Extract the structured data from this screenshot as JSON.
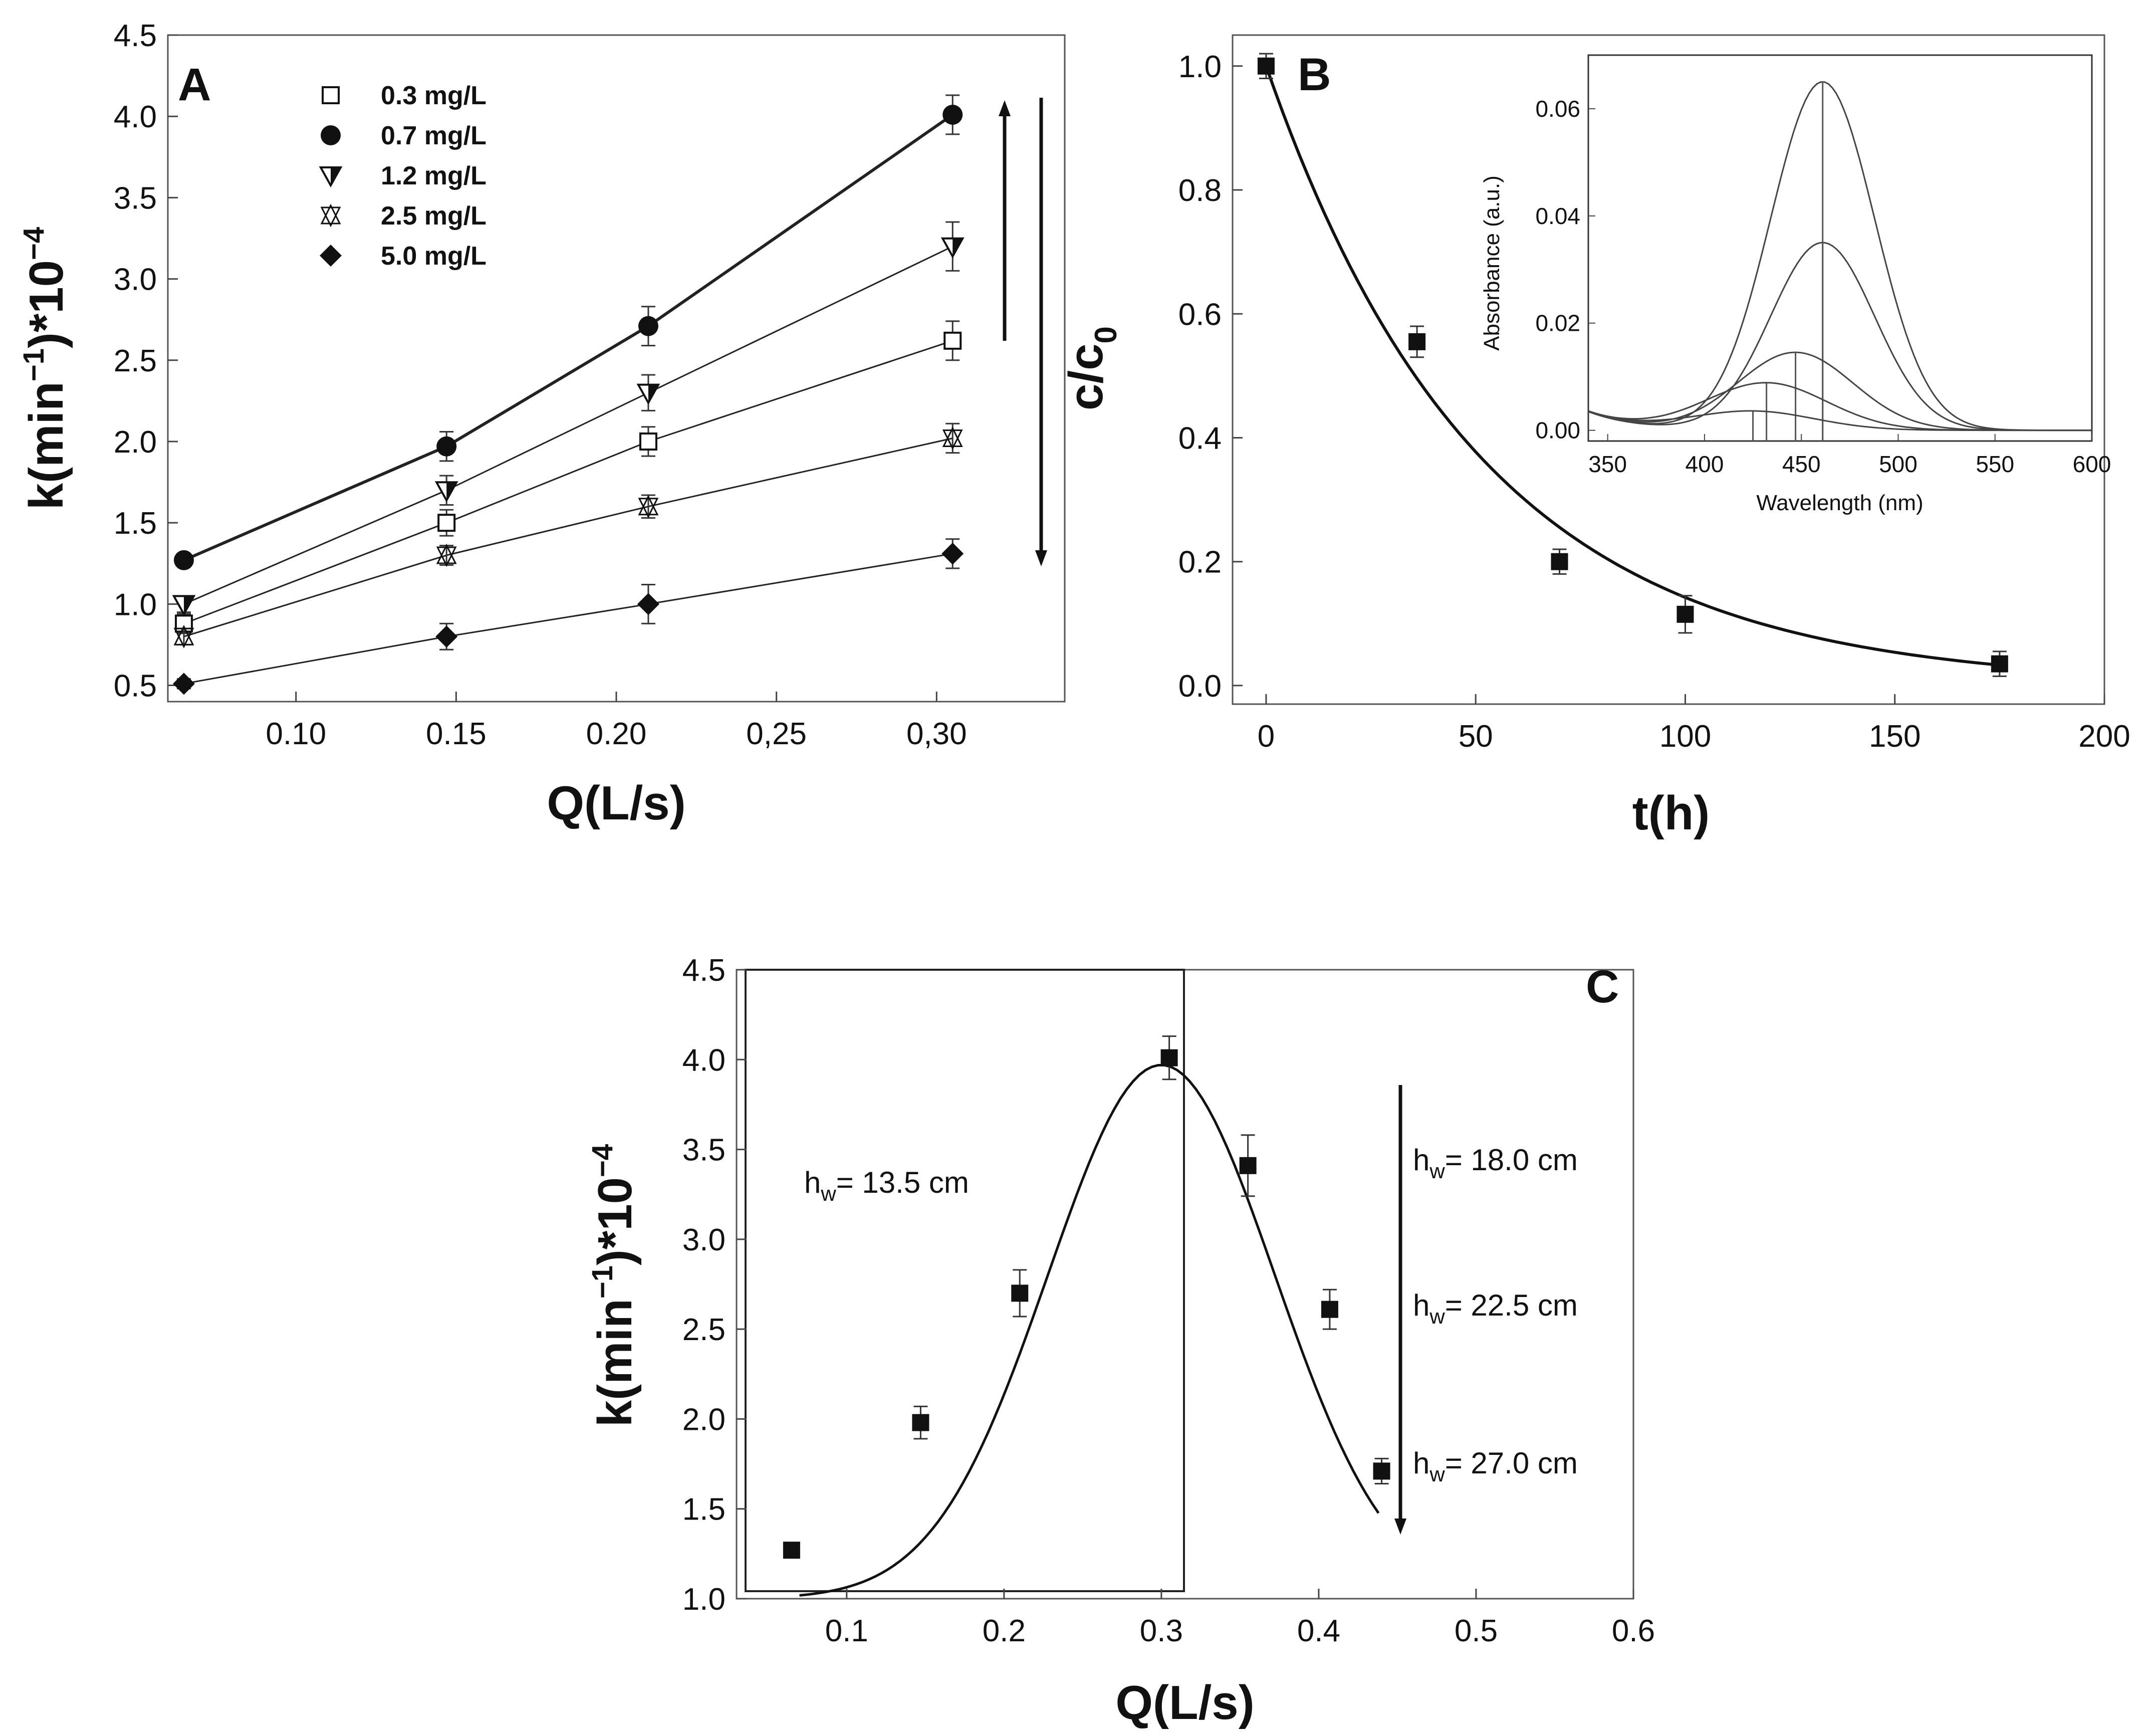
{
  "chart_data": [
    {
      "panel": "A",
      "type": "line",
      "xlabel": "Q(L/s)",
      "ylabel_main": "k(min",
      "ylabel_sup1": "−1",
      "ylabel_mid": ")*10",
      "ylabel_sup2": "−4",
      "xlim": [
        0.06,
        0.34
      ],
      "ylim": [
        0.4,
        4.5
      ],
      "xticks": [
        {
          "v": 0.1,
          "label": "0.10"
        },
        {
          "v": 0.15,
          "label": "0.15"
        },
        {
          "v": 0.2,
          "label": "0.20"
        },
        {
          "v": 0.25,
          "label": "0,25"
        },
        {
          "v": 0.3,
          "label": "0,30"
        }
      ],
      "yticks": [
        {
          "v": 0.5,
          "label": "0.5"
        },
        {
          "v": 1.0,
          "label": "1.0"
        },
        {
          "v": 1.5,
          "label": "1.5"
        },
        {
          "v": 2.0,
          "label": "2.0"
        },
        {
          "v": 2.5,
          "label": "2.5"
        },
        {
          "v": 3.0,
          "label": "3.0"
        },
        {
          "v": 3.5,
          "label": "3.5"
        },
        {
          "v": 4.0,
          "label": "4.0"
        },
        {
          "v": 4.5,
          "label": "4.5"
        }
      ],
      "x": [
        0.065,
        0.147,
        0.21,
        0.305
      ],
      "series": [
        {
          "name": "0.3 mg/L",
          "marker": "open-square",
          "values": [
            0.88,
            1.5,
            2.0,
            2.62
          ],
          "err": [
            0.06,
            0.08,
            0.09,
            0.12
          ]
        },
        {
          "name": "0.7 mg/L",
          "marker": "filled-circle",
          "values": [
            1.27,
            1.97,
            2.71,
            4.01
          ],
          "err": [
            0.04,
            0.09,
            0.12,
            0.12
          ]
        },
        {
          "name": "1.2 mg/L",
          "marker": "half-down-triangle",
          "values": [
            1.0,
            1.7,
            2.3,
            3.2
          ],
          "err": [
            0.05,
            0.09,
            0.11,
            0.15
          ]
        },
        {
          "name": "2.5 mg/L",
          "marker": "star-triangle",
          "values": [
            0.8,
            1.3,
            1.6,
            2.02
          ],
          "err": [
            0.05,
            0.06,
            0.07,
            0.09
          ]
        },
        {
          "name": "5.0 mg/L",
          "marker": "filled-diamond",
          "values": [
            0.51,
            0.8,
            1.0,
            1.31
          ],
          "err": [
            0.03,
            0.08,
            0.12,
            0.09
          ]
        }
      ]
    },
    {
      "panel": "B",
      "type": "scatter",
      "xlabel": "t(h)",
      "ylabel_main": "c/c",
      "ylabel_sub": "0",
      "xlim": [
        -8,
        200
      ],
      "ylim": [
        -0.03,
        1.05
      ],
      "xticks": [
        {
          "v": 0,
          "label": "0"
        },
        {
          "v": 50,
          "label": "50"
        },
        {
          "v": 100,
          "label": "100"
        },
        {
          "v": 150,
          "label": "150"
        },
        {
          "v": 200,
          "label": "200"
        }
      ],
      "yticks": [
        {
          "v": 0.0,
          "label": "0.0"
        },
        {
          "v": 0.2,
          "label": "0.2"
        },
        {
          "v": 0.4,
          "label": "0.4"
        },
        {
          "v": 0.6,
          "label": "0.6"
        },
        {
          "v": 0.8,
          "label": "0.8"
        },
        {
          "v": 1.0,
          "label": "1.0"
        }
      ],
      "x": [
        0,
        36,
        70,
        100,
        175
      ],
      "values": [
        1.0,
        0.555,
        0.2,
        0.115,
        0.035
      ],
      "err": [
        0.02,
        0.025,
        0.02,
        0.03,
        0.02
      ],
      "fit": "exponential decay, k ≈ 0.0195 1/h",
      "inset": {
        "type": "line",
        "xlabel": "Wavelength (nm)",
        "ylabel": "Absorbance (a.u.)",
        "xlim": [
          340,
          600
        ],
        "ylim": [
          -0.002,
          0.07
        ],
        "xticks": [
          {
            "v": 350,
            "label": "350"
          },
          {
            "v": 400,
            "label": "400"
          },
          {
            "v": 450,
            "label": "450"
          },
          {
            "v": 500,
            "label": "500"
          },
          {
            "v": 550,
            "label": "550"
          },
          {
            "v": 600,
            "label": "600"
          }
        ],
        "yticks": [
          {
            "v": 0.0,
            "label": "0.00"
          },
          {
            "v": 0.02,
            "label": "0.02"
          },
          {
            "v": 0.04,
            "label": "0.04"
          },
          {
            "v": 0.06,
            "label": "0.06"
          }
        ],
        "spectra": [
          {
            "peak_nm": 461,
            "peak_abs": 0.065,
            "sigma": 38
          },
          {
            "peak_nm": 461,
            "peak_abs": 0.035,
            "sigma": 38
          },
          {
            "peak_nm": 447,
            "peak_abs": 0.0145,
            "sigma": 42
          },
          {
            "peak_nm": 432,
            "peak_abs": 0.0088,
            "sigma": 44
          },
          {
            "peak_nm": 425,
            "peak_abs": 0.0035,
            "sigma": 45
          }
        ]
      }
    },
    {
      "panel": "C",
      "type": "scatter",
      "xlabel": "Q(L/s)",
      "ylabel_main": "k(min",
      "ylabel_sup1": "−1",
      "ylabel_mid": ")*10",
      "ylabel_sup2": "−4",
      "xlim": [
        0.03,
        0.6
      ],
      "ylim": [
        1.0,
        4.5
      ],
      "xticks": [
        {
          "v": 0.1,
          "label": "0.1"
        },
        {
          "v": 0.2,
          "label": "0.2"
        },
        {
          "v": 0.3,
          "label": "0.3"
        },
        {
          "v": 0.4,
          "label": "0.4"
        },
        {
          "v": 0.5,
          "label": "0.5"
        },
        {
          "v": 0.6,
          "label": "0.6"
        }
      ],
      "yticks": [
        {
          "v": 1.0,
          "label": "1.0"
        },
        {
          "v": 1.5,
          "label": "1.5"
        },
        {
          "v": 2.0,
          "label": "2.0"
        },
        {
          "v": 2.5,
          "label": "2.5"
        },
        {
          "v": 3.0,
          "label": "3.0"
        },
        {
          "v": 3.5,
          "label": "3.5"
        },
        {
          "v": 4.0,
          "label": "4.0"
        },
        {
          "v": 4.5,
          "label": "4.5"
        }
      ],
      "x": [
        0.065,
        0.147,
        0.21,
        0.305,
        0.355,
        0.407,
        0.44
      ],
      "values": [
        1.27,
        1.98,
        2.7,
        4.01,
        3.41,
        2.61,
        1.71
      ],
      "err": [
        0.04,
        0.09,
        0.13,
        0.12,
        0.17,
        0.11,
        0.07
      ],
      "fit": "gaussian, center 0.30, peak 3.97, width 0.075",
      "annotations": {
        "left_h": "h",
        "left_sub": "w",
        "left_text": "= 13.5 cm",
        "r1_h": "h",
        "r1_sub": "w",
        "r1_text": "= 18.0 cm",
        "r2_h": "h",
        "r2_sub": "w",
        "r2_text": "= 22.5 cm",
        "r3_h": "h",
        "r3_sub": "w",
        "r3_text": "= 27.0 cm"
      }
    }
  ],
  "colors": {
    "ink": "#111111",
    "line": "#222222",
    "frame": "#444444"
  }
}
